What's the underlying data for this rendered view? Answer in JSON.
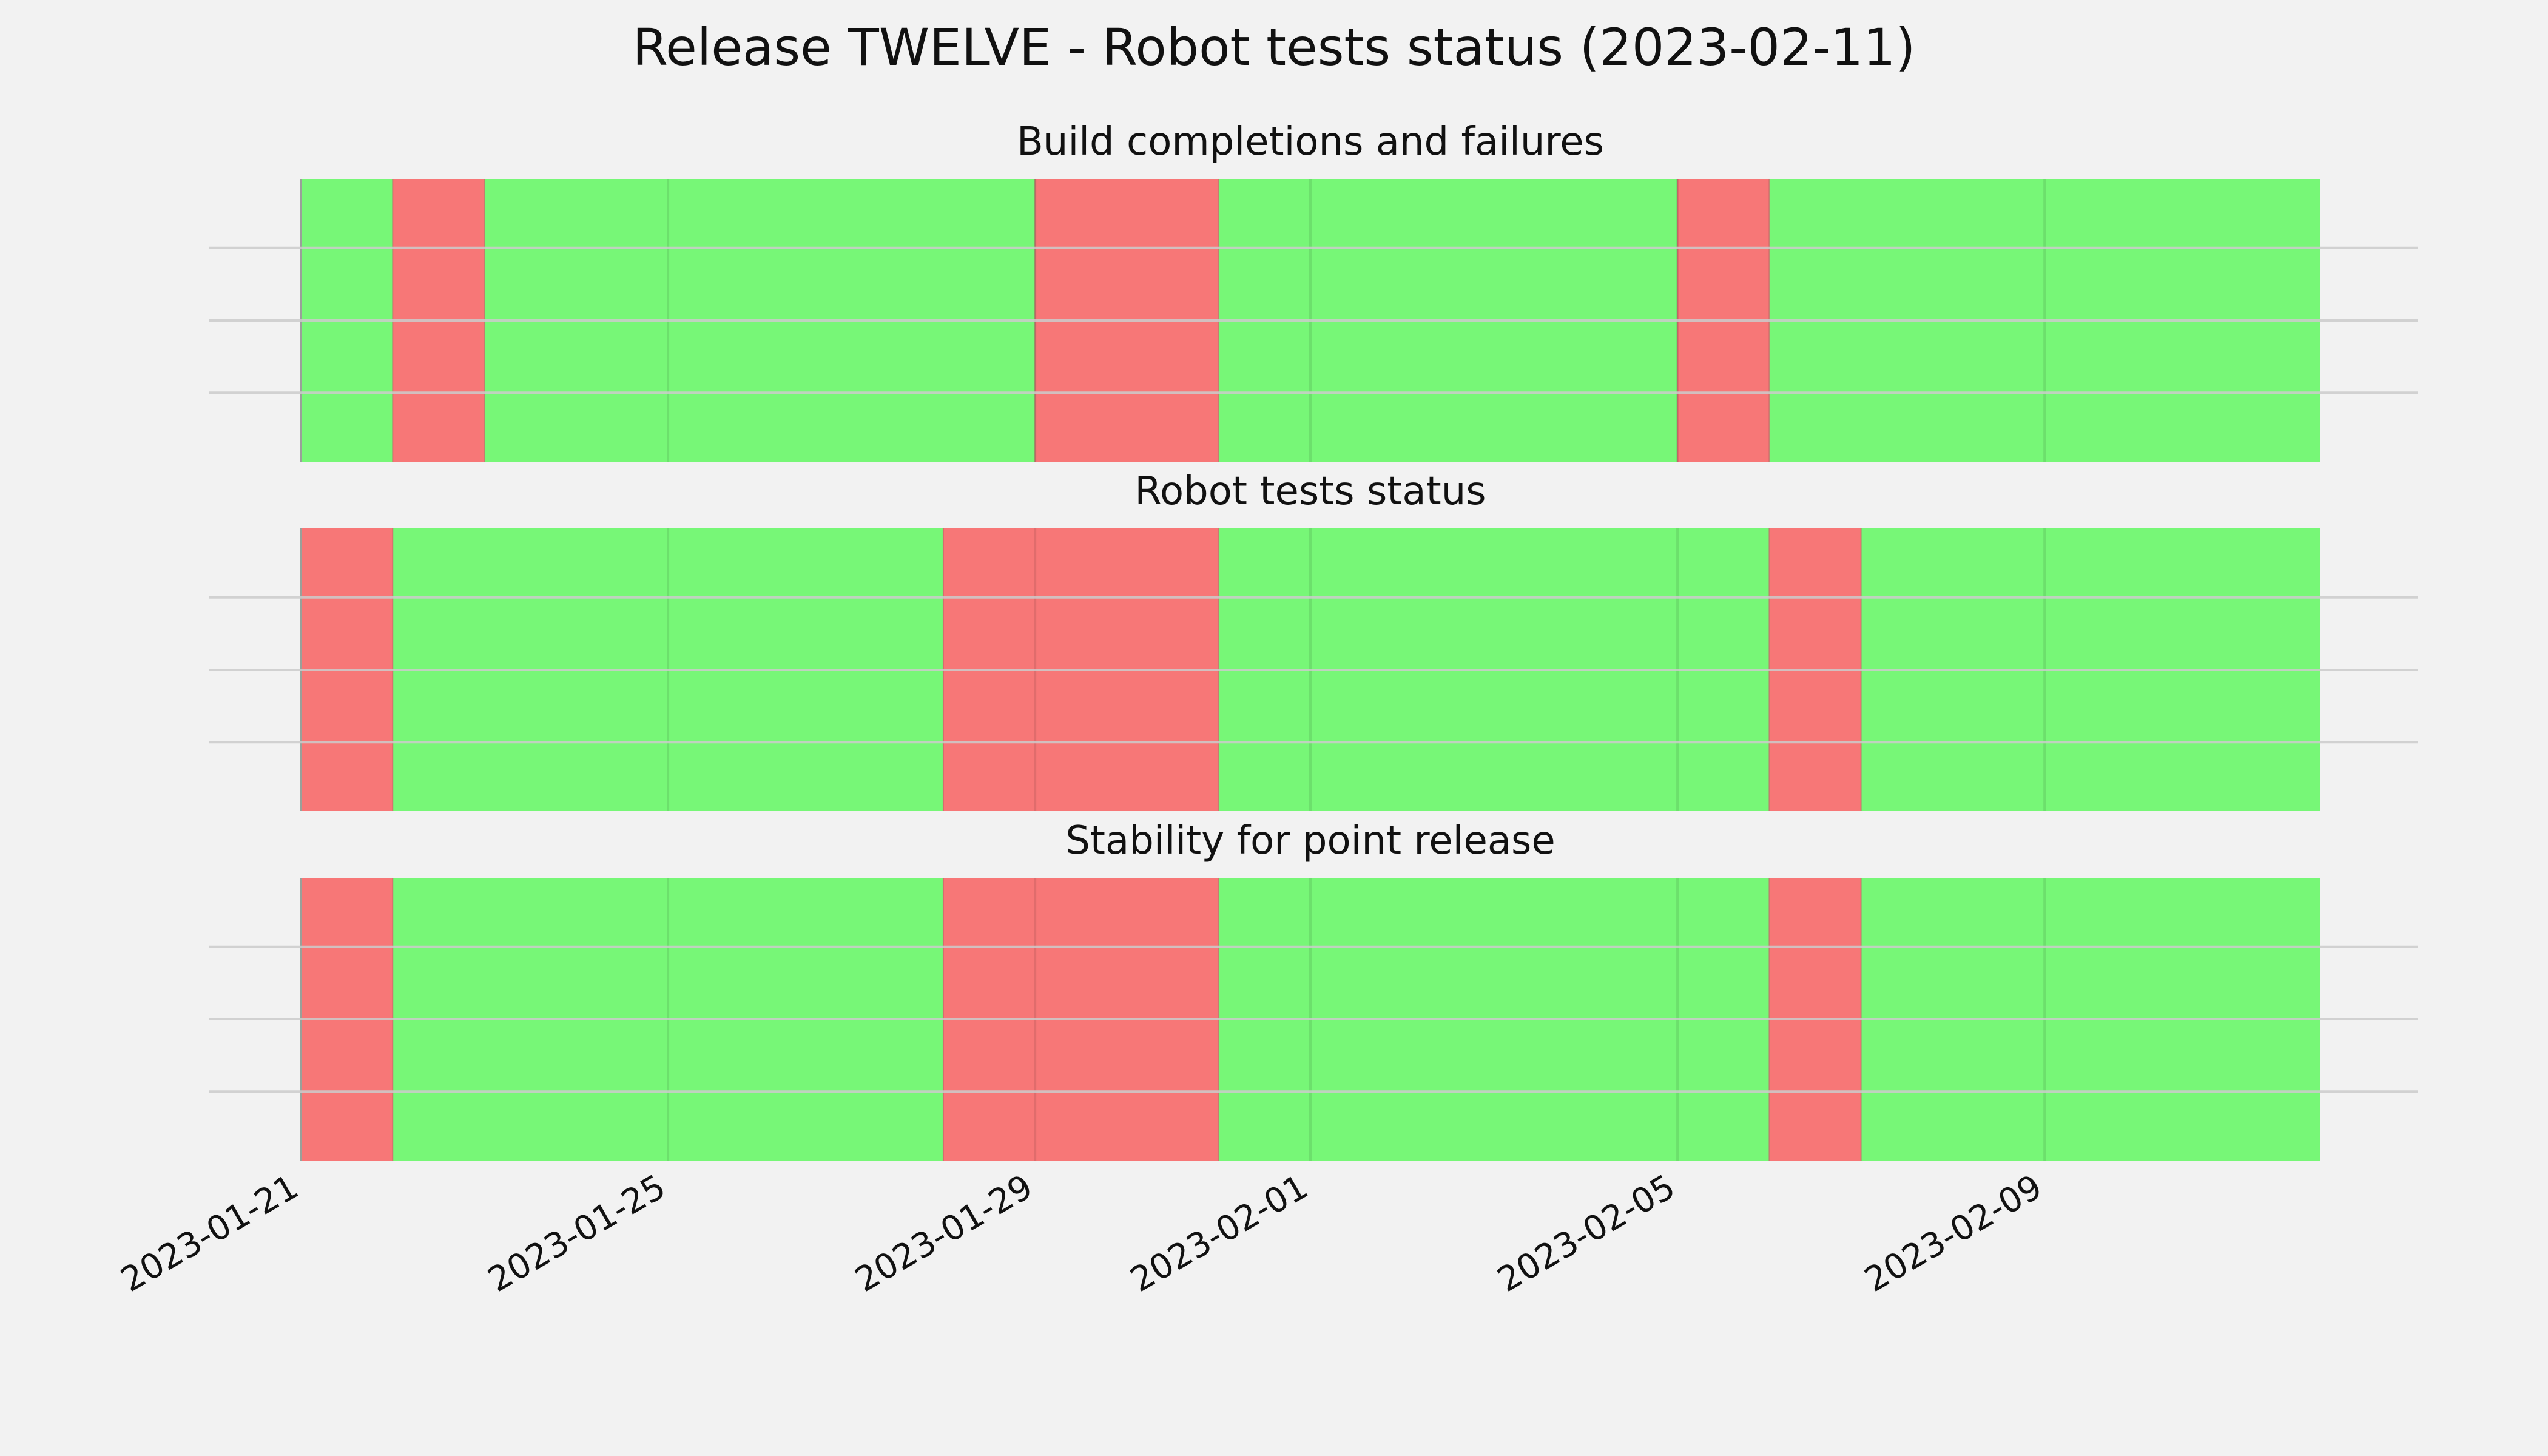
{
  "chart_data": {
    "type": "timeline",
    "title": "Release TWELVE - Robot tests status (2023-02-11)",
    "x_axis": {
      "type": "date",
      "range": [
        "2023-01-21",
        "2023-02-12"
      ],
      "ticks": [
        "2023-01-21",
        "2023-01-25",
        "2023-01-29",
        "2023-02-01",
        "2023-02-05",
        "2023-02-09"
      ],
      "vertical_grid_dates": [
        "2023-01-25",
        "2023-01-29",
        "2023-02-01",
        "2023-02-05",
        "2023-02-09"
      ]
    },
    "grid": true,
    "colors": {
      "pass": "#77f777",
      "fail": "#f77777",
      "background": "#f2f2f2",
      "grid": "#cbcbcb"
    },
    "panels": [
      {
        "title": "Build completions and failures",
        "segments": [
          {
            "start": "2023-01-21",
            "end": "2023-01-22",
            "status": "pass"
          },
          {
            "start": "2023-01-22",
            "end": "2023-01-23",
            "status": "fail"
          },
          {
            "start": "2023-01-23",
            "end": "2023-01-29",
            "status": "pass"
          },
          {
            "start": "2023-01-29",
            "end": "2023-01-31",
            "status": "fail"
          },
          {
            "start": "2023-01-31",
            "end": "2023-02-05",
            "status": "pass"
          },
          {
            "start": "2023-02-05",
            "end": "2023-02-06",
            "status": "fail"
          },
          {
            "start": "2023-02-06",
            "end": "2023-02-12",
            "status": "pass"
          }
        ]
      },
      {
        "title": "Robot tests status",
        "segments": [
          {
            "start": "2023-01-21",
            "end": "2023-01-22",
            "status": "fail"
          },
          {
            "start": "2023-01-22",
            "end": "2023-01-28",
            "status": "pass"
          },
          {
            "start": "2023-01-28",
            "end": "2023-01-31",
            "status": "fail"
          },
          {
            "start": "2023-01-31",
            "end": "2023-02-06",
            "status": "pass"
          },
          {
            "start": "2023-02-06",
            "end": "2023-02-07",
            "status": "fail"
          },
          {
            "start": "2023-02-07",
            "end": "2023-02-12",
            "status": "pass"
          }
        ]
      },
      {
        "title": "Stability for point release",
        "segments": [
          {
            "start": "2023-01-21",
            "end": "2023-01-22",
            "status": "fail"
          },
          {
            "start": "2023-01-22",
            "end": "2023-01-28",
            "status": "pass"
          },
          {
            "start": "2023-01-28",
            "end": "2023-01-31",
            "status": "fail"
          },
          {
            "start": "2023-01-31",
            "end": "2023-02-06",
            "status": "pass"
          },
          {
            "start": "2023-02-06",
            "end": "2023-02-07",
            "status": "fail"
          },
          {
            "start": "2023-02-07",
            "end": "2023-02-12",
            "status": "pass"
          }
        ]
      }
    ]
  }
}
